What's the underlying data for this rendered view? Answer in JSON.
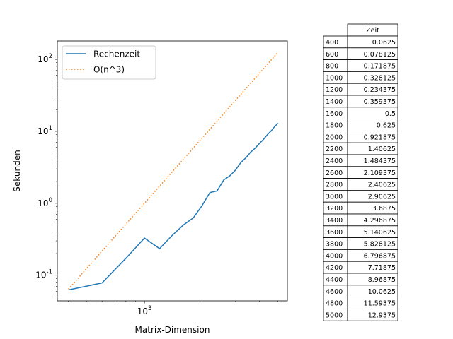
{
  "chart_data": {
    "type": "line",
    "x_scale": "log",
    "y_scale": "log",
    "xlabel": "Matrix-Dimension",
    "ylabel": "Sekunden",
    "xlim": [
      350,
      5600
    ],
    "ylim": [
      0.044,
      180
    ],
    "x_ticks": [
      {
        "value": 1000,
        "label": "10^3"
      }
    ],
    "y_ticks": [
      {
        "value": 0.1,
        "label": "10^-1"
      },
      {
        "value": 1,
        "label": "10^0"
      },
      {
        "value": 10,
        "label": "10^1"
      },
      {
        "value": 100,
        "label": "10^2"
      }
    ],
    "grid": false,
    "legend_position": "upper-left",
    "x": [
      400,
      600,
      800,
      1000,
      1200,
      1400,
      1600,
      1800,
      2000,
      2200,
      2400,
      2600,
      2800,
      3000,
      3200,
      3400,
      3600,
      3800,
      4000,
      4200,
      4400,
      4600,
      4800,
      5000
    ],
    "series": [
      {
        "name": "Rechenzeit",
        "color": "#1f77b4",
        "style": "solid",
        "values": [
          0.0625,
          0.078125,
          0.171875,
          0.328125,
          0.234375,
          0.359375,
          0.5,
          0.625,
          0.921875,
          1.40625,
          1.484375,
          2.109375,
          2.40625,
          2.90625,
          3.6875,
          4.296875,
          5.140625,
          5.828125,
          6.796875,
          7.71875,
          8.96875,
          10.0625,
          11.59375,
          12.9375
        ]
      },
      {
        "name": "O(n^3)",
        "color": "#ff7f0e",
        "style": "dotted",
        "values": [
          0.064,
          0.216,
          0.512,
          1.0,
          1.728,
          2.744,
          4.096,
          5.832,
          8.0,
          10.648,
          13.824,
          17.576,
          21.952,
          27.0,
          32.768,
          39.304,
          46.656,
          54.872,
          64.0,
          74.088,
          85.184,
          97.336,
          110.592,
          125.0
        ]
      }
    ],
    "table": {
      "header": "Zeit",
      "row_labels": [
        "400",
        "600",
        "800",
        "1000",
        "1200",
        "1400",
        "1600",
        "1800",
        "2000",
        "2200",
        "2400",
        "2600",
        "2800",
        "3000",
        "3200",
        "3400",
        "3600",
        "3800",
        "4000",
        "4200",
        "4400",
        "4600",
        "4800",
        "5000"
      ],
      "cells": [
        "0.0625",
        "0.078125",
        "0.171875",
        "0.328125",
        "0.234375",
        "0.359375",
        "0.5",
        "0.625",
        "0.921875",
        "1.40625",
        "1.484375",
        "2.109375",
        "2.40625",
        "2.90625",
        "3.6875",
        "4.296875",
        "5.140625",
        "5.828125",
        "6.796875",
        "7.71875",
        "8.96875",
        "10.0625",
        "11.59375",
        "12.9375"
      ]
    }
  }
}
